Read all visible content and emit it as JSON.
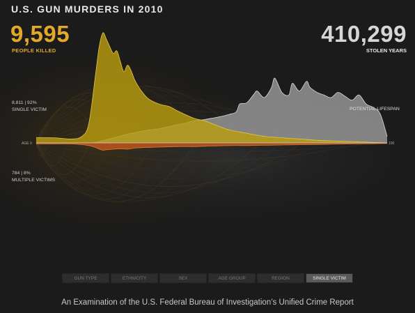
{
  "header": {
    "title": "U.S. GUN MURDERS IN 2010",
    "killed_count": "9,595",
    "killed_label": "PEOPLE KILLED",
    "stolen_count": "410,299",
    "stolen_label": "STOLEN YEARS"
  },
  "notes": {
    "single_stat": "8,811 | 92%",
    "single_label": "SINGLE VICTIM",
    "multiple_stat": "784 | 8%",
    "multiple_label": "MULTIPLE VICTIMS",
    "potential_label": "POTENTIAL LIFESPAN"
  },
  "colors": {
    "killed": "#e3a72a",
    "killed_area": "#b89c10",
    "lifespan_area": "#9a9a9a",
    "multiple_area": "#c4551c",
    "background": "#1b1b1b"
  },
  "chart_data": {
    "type": "area",
    "title": "U.S. GUN MURDERS IN 2010",
    "xlabel": "",
    "ylabel": "",
    "x_ticks": [
      "AGE 0",
      "100"
    ],
    "xlim": [
      0,
      100
    ],
    "grid": false,
    "series": [
      {
        "name": "PEOPLE KILLED",
        "x": [
          0,
          5,
          10,
          13,
          15,
          17,
          18,
          19,
          20,
          21,
          22,
          23,
          24,
          25,
          26,
          27,
          28,
          29,
          30,
          32,
          35,
          38,
          40,
          42,
          45,
          48,
          50,
          55,
          60,
          65,
          70,
          75,
          80,
          85,
          90,
          95,
          100
        ],
        "values": [
          8,
          8,
          6,
          10,
          30,
          110,
          150,
          170,
          160,
          148,
          138,
          142,
          125,
          110,
          120,
          112,
          98,
          88,
          80,
          68,
          60,
          56,
          50,
          45,
          38,
          34,
          30,
          20,
          15,
          10,
          8,
          6,
          4,
          3,
          2,
          1,
          0
        ]
      },
      {
        "name": "POTENTIAL LIFESPAN",
        "x": [
          0,
          15,
          20,
          25,
          30,
          35,
          40,
          42,
          45,
          48,
          50,
          52,
          55,
          57,
          58,
          60,
          62,
          63,
          65,
          67,
          68,
          70,
          72,
          73,
          75,
          77,
          78,
          80,
          82,
          84,
          86,
          88,
          90,
          92,
          94,
          96,
          98,
          100
        ],
        "values": [
          0,
          0,
          5,
          12,
          18,
          22,
          28,
          30,
          34,
          36,
          38,
          40,
          44,
          48,
          60,
          62,
          75,
          80,
          70,
          85,
          100,
          78,
          74,
          92,
          80,
          95,
          86,
          78,
          74,
          70,
          78,
          72,
          66,
          74,
          60,
          55,
          45,
          10
        ]
      },
      {
        "name": "MULTIPLE VICTIMS",
        "x": [
          0,
          5,
          10,
          15,
          17,
          18,
          19,
          20,
          22,
          24,
          26,
          28,
          30,
          35,
          40,
          45,
          50,
          55,
          60,
          70,
          80,
          90,
          100
        ],
        "values": [
          2,
          2,
          2,
          5,
          9,
          12,
          14,
          13,
          12,
          11,
          12,
          10,
          9,
          8,
          7,
          7,
          6,
          5,
          5,
          4,
          3,
          2,
          1
        ]
      }
    ]
  },
  "tabs": [
    {
      "label": "GUN TYPE",
      "active": false
    },
    {
      "label": "ETHNICITY",
      "active": false
    },
    {
      "label": "SEX",
      "active": false
    },
    {
      "label": "AGE GROUP",
      "active": false
    },
    {
      "label": "REGION",
      "active": false
    },
    {
      "label": "SINGLE VICTIM",
      "active": true
    }
  ],
  "footer": "An Examination of the U.S. Federal Bureau of Investigation’s Unified Crime Report"
}
